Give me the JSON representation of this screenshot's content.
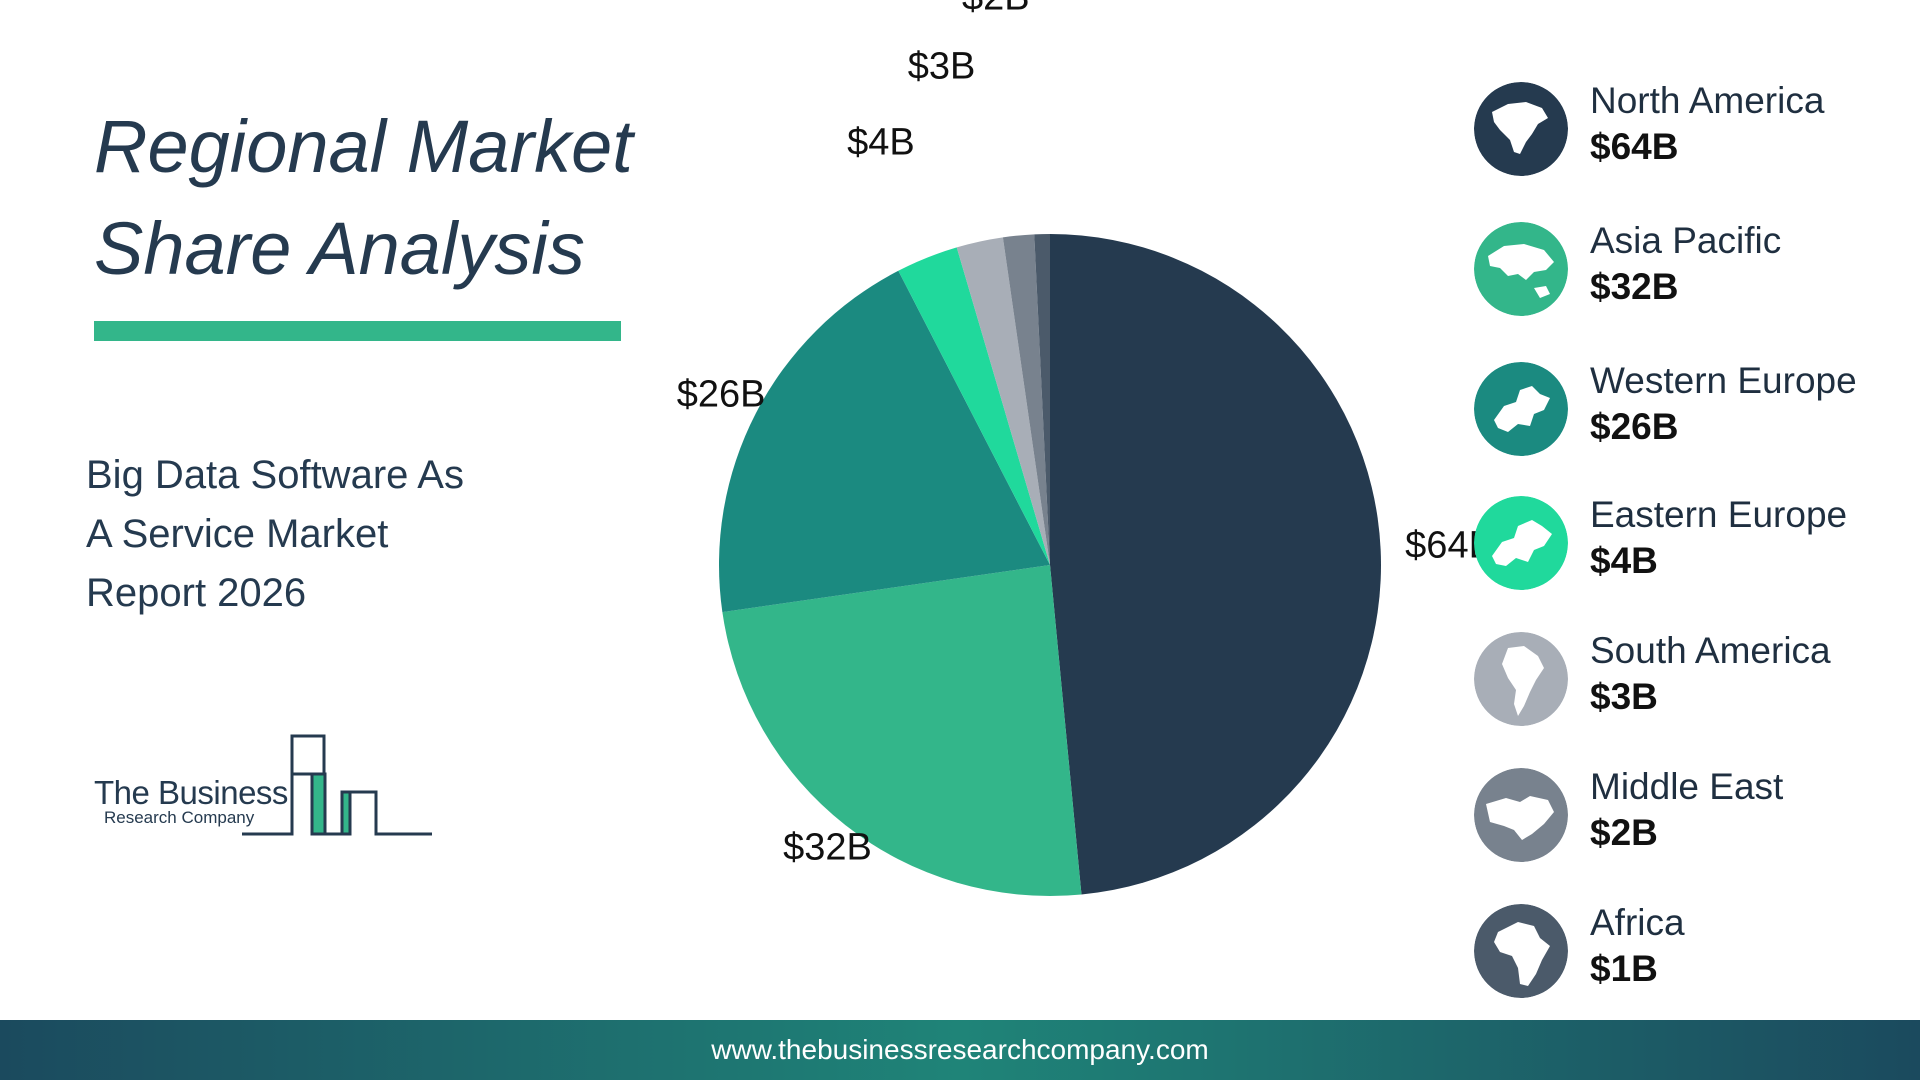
{
  "header": {
    "title_line1": "Regional Market",
    "title_line2": "Share Analysis",
    "subtitle_line1": "Big Data Software As",
    "subtitle_line2": "A Service Market",
    "subtitle_line3": "Report 2026"
  },
  "logo": {
    "line1": "The Business",
    "line2": "Research Company"
  },
  "colors": {
    "title": "#253a4f",
    "accent": "#33b68a",
    "footer_start": "#1b4a5e",
    "footer_mid": "#1f8478"
  },
  "chart_data": {
    "type": "pie",
    "title": "",
    "start": "top",
    "direction": "clockwise",
    "slices": [
      {
        "name": "North America",
        "value": 64,
        "label": "$64B",
        "color": "#253a4f",
        "icon": "north-america-map-icon"
      },
      {
        "name": "Asia Pacific",
        "value": 32,
        "label": "$32B",
        "color": "#33b68a",
        "icon": "asia-pacific-map-icon"
      },
      {
        "name": "Western Europe",
        "value": 26,
        "label": "$26B",
        "color": "#1b8a80",
        "icon": "western-europe-map-icon"
      },
      {
        "name": "Eastern Europe",
        "value": 4,
        "label": "$4B",
        "color": "#20d99c",
        "icon": "eastern-europe-map-icon"
      },
      {
        "name": "South America",
        "value": 3,
        "label": "$3B",
        "color": "#a8aeb7",
        "icon": "south-america-map-icon"
      },
      {
        "name": "Middle East",
        "value": 2,
        "label": "$2B",
        "color": "#78828e",
        "icon": "middle-east-map-icon"
      },
      {
        "name": "Africa",
        "value": 1,
        "label": "$1B",
        "color": "#4b5a6a",
        "icon": "africa-map-icon"
      }
    ],
    "legend_position": "right"
  },
  "footer": {
    "url": "www.thebusinessresearchcompany.com"
  }
}
